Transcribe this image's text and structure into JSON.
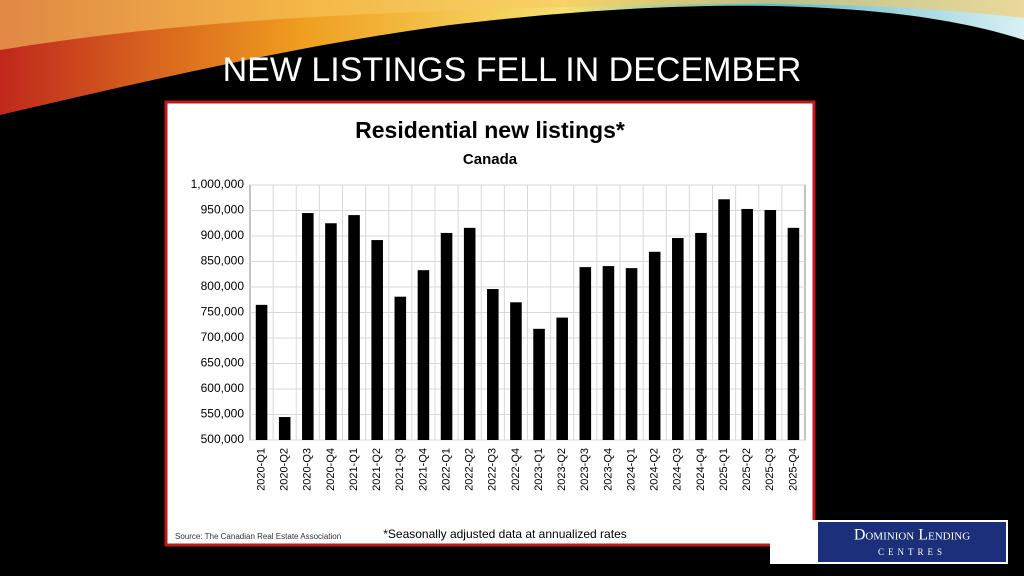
{
  "slide": {
    "title": "NEW LISTINGS FELL IN DECEMBER"
  },
  "logo": {
    "line1": "Dominion Lending",
    "line2": "CENTRES"
  },
  "chart_data": {
    "type": "bar",
    "title": "Residential new listings*",
    "subtitle": "Canada",
    "categories": [
      "2020-Q1",
      "2020-Q2",
      "2020-Q3",
      "2020-Q4",
      "2021-Q1",
      "2021-Q2",
      "2021-Q3",
      "2021-Q4",
      "2022-Q1",
      "2022-Q2",
      "2022-Q3",
      "2022-Q4",
      "2023-Q1",
      "2023-Q2",
      "2023-Q3",
      "2023-Q4",
      "2024-Q1",
      "2024-Q2",
      "2024-Q3",
      "2024-Q4",
      "2025-Q1",
      "2025-Q2",
      "2025-Q3",
      "2025-Q4"
    ],
    "values": [
      765000,
      545000,
      945000,
      925000,
      941000,
      892000,
      781000,
      833000,
      906000,
      916000,
      796000,
      770000,
      718000,
      740000,
      839000,
      841000,
      837000,
      869000,
      896000,
      906000,
      972000,
      953000,
      951000,
      916000
    ],
    "color": "#000000",
    "ylim": [
      500000,
      1000000
    ],
    "yticks": [
      {
        "value": 500000,
        "label": "500,000"
      },
      {
        "value": 550000,
        "label": "550,000"
      },
      {
        "value": 600000,
        "label": "600,000"
      },
      {
        "value": 650000,
        "label": "650,000"
      },
      {
        "value": 700000,
        "label": "700,000"
      },
      {
        "value": 750000,
        "label": "750,000"
      },
      {
        "value": 800000,
        "label": "800,000"
      },
      {
        "value": 850000,
        "label": "850,000"
      },
      {
        "value": 900000,
        "label": "900,000"
      },
      {
        "value": 950000,
        "label": "950,000"
      },
      {
        "value": 1000000,
        "label": "1,000,000"
      }
    ],
    "grid": true,
    "source": "Source: The Canadian Real Estate Association",
    "note": "*Seasonally adjusted data at annualized rates"
  }
}
